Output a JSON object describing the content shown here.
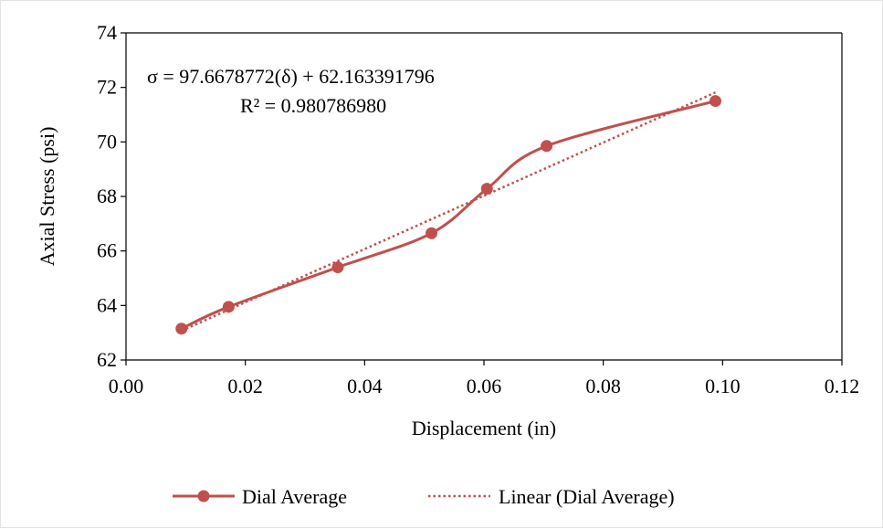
{
  "chart_data": {
    "type": "line",
    "xlabel": "Displacement (in)",
    "ylabel": "Axial Stress (psi)",
    "xlim": [
      0,
      0.12
    ],
    "ylim": [
      62,
      74
    ],
    "x_ticks": [
      "0.00",
      "0.02",
      "0.04",
      "0.06",
      "0.08",
      "0.10",
      "0.12"
    ],
    "y_ticks": [
      "62",
      "64",
      "66",
      "68",
      "70",
      "72",
      "74"
    ],
    "grid": false,
    "legend_position": "bottom",
    "series": [
      {
        "name": "Dial Average",
        "style": "smooth-line-with-markers",
        "color": "#c0504d",
        "x": [
          0.0093,
          0.0172,
          0.0355,
          0.0512,
          0.0605,
          0.0705,
          0.0988
        ],
        "y": [
          63.15,
          63.95,
          65.4,
          66.65,
          68.28,
          69.85,
          71.5
        ]
      },
      {
        "name": "Linear (Dial Average)",
        "style": "dotted-trendline",
        "color": "#c0504d",
        "slope": 97.6678772,
        "intercept": 62.163391796
      }
    ],
    "annotations": {
      "equation": "σ = 97.6678772(δ) + 62.163391796",
      "r_squared": "R² = 0.980786980"
    }
  }
}
